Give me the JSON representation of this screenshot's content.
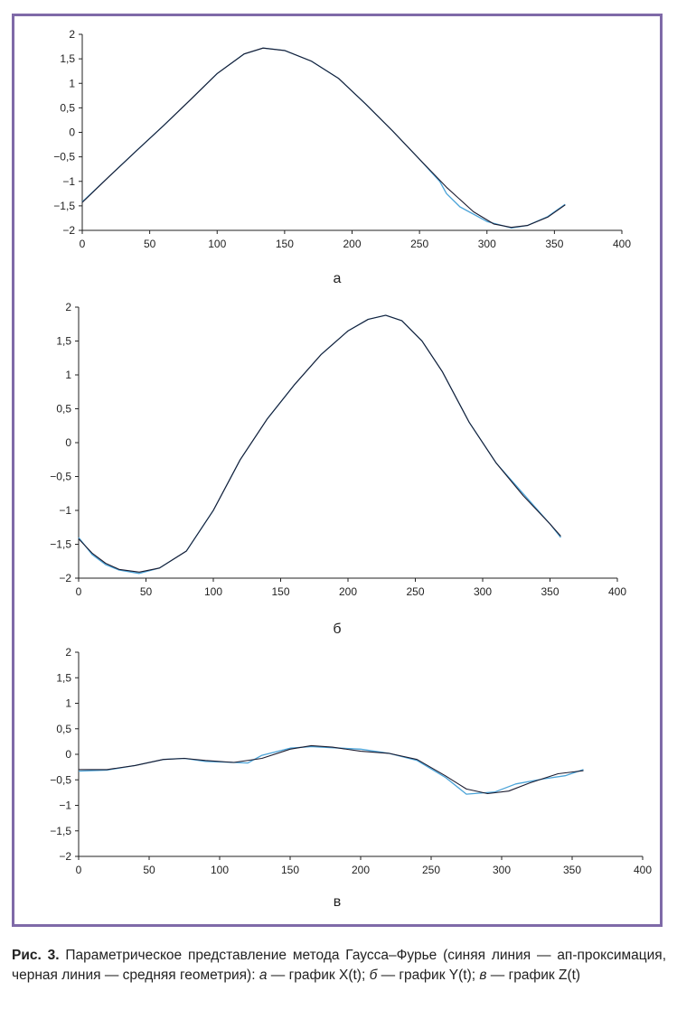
{
  "chart_data": [
    {
      "type": "line",
      "panel_label": "а",
      "x_ticks": [
        "0",
        "50",
        "100",
        "150",
        "200",
        "250",
        "300",
        "350",
        "400"
      ],
      "y_ticks": [
        "2",
        "1,5",
        "1",
        "0,5",
        "0",
        "−0,5",
        "−1",
        "−1,5",
        "−2"
      ],
      "xlim": [
        0,
        400
      ],
      "ylim": [
        -2,
        2
      ],
      "series": [
        {
          "color": "#4aa3d8",
          "x": [
            0,
            20,
            40,
            60,
            80,
            100,
            120,
            134,
            150,
            170,
            190,
            210,
            230,
            250,
            265,
            270,
            280,
            300,
            318,
            330,
            345,
            358
          ],
          "y": [
            -1.42,
            -0.9,
            -0.38,
            0.13,
            0.66,
            1.2,
            1.6,
            1.72,
            1.67,
            1.45,
            1.1,
            0.58,
            0.03,
            -0.55,
            -1.0,
            -1.25,
            -1.52,
            -1.82,
            -1.95,
            -1.9,
            -1.72,
            -1.47
          ]
        },
        {
          "color": "#1a1a2e",
          "x": [
            0,
            20,
            40,
            60,
            80,
            100,
            120,
            134,
            150,
            170,
            190,
            210,
            230,
            250,
            270,
            290,
            305,
            318,
            330,
            345,
            358
          ],
          "y": [
            -1.43,
            -0.9,
            -0.38,
            0.13,
            0.66,
            1.2,
            1.6,
            1.72,
            1.67,
            1.45,
            1.1,
            0.58,
            0.03,
            -0.55,
            -1.12,
            -1.62,
            -1.87,
            -1.94,
            -1.9,
            -1.73,
            -1.48
          ]
        }
      ]
    },
    {
      "type": "line",
      "panel_label": "б",
      "x_ticks": [
        "0",
        "50",
        "100",
        "150",
        "200",
        "250",
        "300",
        "350",
        "400"
      ],
      "y_ticks": [
        "2",
        "1,5",
        "1",
        "0,5",
        "0",
        "−0,5",
        "−1",
        "−1,5",
        "−2"
      ],
      "xlim": [
        0,
        400
      ],
      "ylim": [
        -2,
        2
      ],
      "series": [
        {
          "color": "#4aa3d8",
          "x": [
            0,
            10,
            20,
            30,
            45,
            60,
            80,
            100,
            120,
            140,
            160,
            180,
            200,
            215,
            228,
            240,
            255,
            270,
            290,
            310,
            330,
            350,
            358
          ],
          "y": [
            -1.4,
            -1.65,
            -1.8,
            -1.88,
            -1.93,
            -1.85,
            -1.6,
            -1.0,
            -0.25,
            0.35,
            0.85,
            1.3,
            1.65,
            1.82,
            1.88,
            1.8,
            1.5,
            1.05,
            0.3,
            -0.3,
            -0.75,
            -1.2,
            -1.4
          ]
        },
        {
          "color": "#1a1a2e",
          "x": [
            0,
            10,
            20,
            30,
            45,
            60,
            80,
            100,
            120,
            140,
            160,
            180,
            200,
            215,
            228,
            240,
            255,
            270,
            290,
            310,
            330,
            350,
            358
          ],
          "y": [
            -1.42,
            -1.63,
            -1.78,
            -1.87,
            -1.91,
            -1.85,
            -1.6,
            -1.0,
            -0.25,
            0.35,
            0.85,
            1.3,
            1.65,
            1.82,
            1.88,
            1.8,
            1.5,
            1.05,
            0.3,
            -0.3,
            -0.78,
            -1.2,
            -1.38
          ]
        }
      ]
    },
    {
      "type": "line",
      "panel_label": "в",
      "x_ticks": [
        "0",
        "50",
        "100",
        "150",
        "200",
        "250",
        "300",
        "350",
        "400"
      ],
      "y_ticks": [
        "2",
        "1,5",
        "1",
        "0,5",
        "0",
        "−0,5",
        "−1",
        "−1,5",
        "−2"
      ],
      "xlim": [
        0,
        400
      ],
      "ylim": [
        -2,
        2
      ],
      "series": [
        {
          "color": "#4aa3d8",
          "x": [
            0,
            20,
            40,
            60,
            75,
            90,
            110,
            120,
            130,
            150,
            165,
            180,
            200,
            220,
            240,
            260,
            275,
            285,
            295,
            310,
            330,
            345,
            358
          ],
          "y": [
            -0.33,
            -0.31,
            -0.22,
            -0.1,
            -0.08,
            -0.14,
            -0.16,
            -0.17,
            -0.02,
            0.12,
            0.15,
            0.13,
            0.1,
            0.02,
            -0.12,
            -0.45,
            -0.78,
            -0.76,
            -0.74,
            -0.58,
            -0.48,
            -0.42,
            -0.3
          ]
        },
        {
          "color": "#1a1a2e",
          "x": [
            0,
            20,
            40,
            60,
            75,
            90,
            110,
            130,
            150,
            165,
            180,
            200,
            220,
            240,
            260,
            275,
            290,
            305,
            320,
            340,
            358
          ],
          "y": [
            -0.3,
            -0.3,
            -0.22,
            -0.1,
            -0.08,
            -0.12,
            -0.16,
            -0.08,
            0.1,
            0.17,
            0.14,
            0.06,
            0.02,
            -0.1,
            -0.42,
            -0.68,
            -0.77,
            -0.72,
            -0.56,
            -0.38,
            -0.32
          ]
        }
      ]
    }
  ],
  "caption": {
    "fig_label": "Рис. 3.",
    "part1": " Параметрическое представление метода Гаусса–Фурье (синяя линия — ап-проксимация, черная линия — средняя геометрия): ",
    "a": "а",
    "part2": " — график X(t); ",
    "b": "б",
    "part3": " — график Y(t); ",
    "v": "в",
    "part4": " — график Z(t)"
  }
}
